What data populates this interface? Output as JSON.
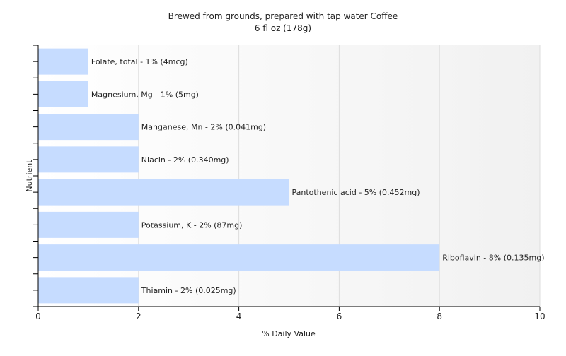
{
  "chart_data": {
    "type": "bar",
    "orientation": "horizontal",
    "title": "Brewed from grounds, prepared with tap water Coffee",
    "subtitle": "6 fl oz (178g)",
    "xlabel": "% Daily Value",
    "ylabel": "Nutrient",
    "xlim": [
      0,
      10
    ],
    "xticks": [
      "0",
      "2",
      "4",
      "6",
      "8",
      "10"
    ],
    "grid": true,
    "bar_color": "#c6dcff",
    "categories": [
      "Folate, total",
      "Magnesium, Mg",
      "Manganese, Mn",
      "Niacin",
      "Pantothenic acid",
      "Potassium, K",
      "Riboflavin",
      "Thiamin"
    ],
    "values": [
      1,
      1,
      2,
      2,
      5,
      2,
      8,
      2
    ],
    "bar_labels": [
      "Folate, total - 1% (4mcg)",
      "Magnesium, Mg - 1% (5mg)",
      "Manganese, Mn - 2% (0.041mg)",
      "Niacin - 2% (0.340mg)",
      "Pantothenic acid - 5% (0.452mg)",
      "Potassium, K - 2% (87mg)",
      "Riboflavin - 8% (0.135mg)",
      "Thiamin - 2% (0.025mg)"
    ]
  }
}
